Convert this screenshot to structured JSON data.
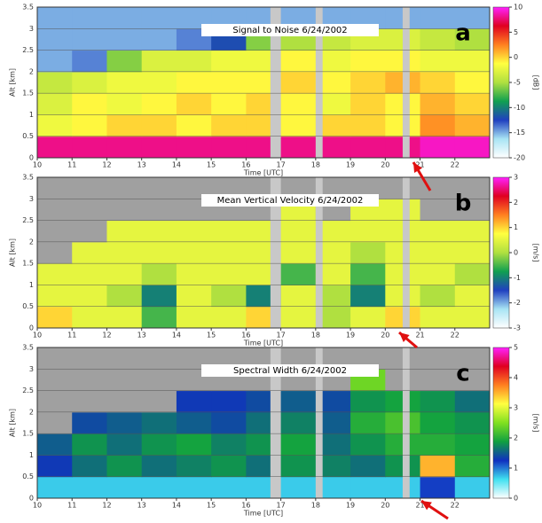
{
  "chart_data": [
    {
      "type": "heatmap",
      "title": "Signal to Noise 6/24/2002",
      "panel_label": "a",
      "y_label": "Alt [km]",
      "x_label": "Time [UTC]",
      "colorbar_label": "[dB]",
      "x_bins": [
        10,
        11,
        12,
        13,
        14,
        15,
        16,
        17,
        18,
        19,
        20,
        21,
        22,
        23
      ],
      "y_bins": [
        0,
        0.5,
        1,
        1.5,
        2,
        2.5,
        3,
        3.5
      ],
      "xlim": [
        10,
        23
      ],
      "ylim": [
        0,
        3.5
      ],
      "xticks": [
        10,
        11,
        12,
        13,
        14,
        15,
        16,
        17,
        18,
        19,
        20,
        21,
        22
      ],
      "yticks": [
        0,
        0.5,
        1,
        1.5,
        2,
        2.5,
        3,
        3.5
      ],
      "zlim": [
        -20,
        10
      ],
      "zticks": [
        -20,
        -15,
        -10,
        -5,
        0,
        5,
        10
      ],
      "colormap": [
        "#ffffff",
        "#a8e4f4",
        "#2040c0",
        "#10a050",
        "#b0e040",
        "#ffff40",
        "#ff8020",
        "#e00020",
        "#ff20ff"
      ],
      "null_color": "#a0a0a0",
      "background": "#b8ecf8",
      "gaps": [
        [
          16.7,
          17.0
        ],
        [
          18.0,
          18.2
        ],
        [
          20.5,
          20.7
        ]
      ],
      "z": [
        [
          8,
          8,
          8,
          8,
          8,
          8,
          8,
          8,
          8,
          8,
          8,
          9,
          9
        ],
        [
          -2,
          -1,
          0,
          0,
          -1,
          0,
          0,
          -1,
          0,
          0,
          -1,
          2,
          1
        ],
        [
          -3,
          -1,
          -2,
          -1,
          0,
          -1,
          0,
          -1,
          -2,
          0,
          -1,
          1,
          0
        ],
        [
          -4,
          -3,
          -2,
          -2,
          -1,
          -1,
          -1,
          0,
          -1,
          0,
          1,
          0,
          -1
        ],
        [
          -15,
          -14,
          -6,
          -3,
          -3,
          -2,
          -2,
          -1,
          -2,
          -1,
          -1,
          -2,
          -2
        ],
        [
          -15,
          -15,
          -15,
          -15,
          -14,
          -12,
          -6,
          -5,
          -4,
          -3,
          -3,
          -4,
          -5
        ],
        [
          -15,
          -15,
          -15,
          -15,
          -15,
          -15,
          -15,
          -15,
          -15,
          -15,
          -15,
          -15,
          -15
        ]
      ]
    },
    {
      "type": "heatmap",
      "title": "Mean Vertical Velocity 6/24/2002",
      "panel_label": "b",
      "y_label": "Alt [km]",
      "x_label": "Time [UTC]",
      "colorbar_label": "[m/s]",
      "x_bins": [
        10,
        11,
        12,
        13,
        14,
        15,
        16,
        17,
        18,
        19,
        20,
        21,
        22,
        23
      ],
      "y_bins": [
        0,
        0.5,
        1,
        1.5,
        2,
        2.5,
        3,
        3.5
      ],
      "xlim": [
        10,
        23
      ],
      "ylim": [
        0,
        3.5
      ],
      "xticks": [
        10,
        11,
        12,
        13,
        14,
        15,
        16,
        17,
        18,
        19,
        20,
        21,
        22
      ],
      "yticks": [
        0,
        0.5,
        1,
        1.5,
        2,
        2.5,
        3,
        3.5
      ],
      "zlim": [
        -3,
        3
      ],
      "zticks": [
        -3,
        -2,
        -1,
        0,
        1,
        2,
        3
      ],
      "colormap": [
        "#ffffff",
        "#a8e4f4",
        "#2040c0",
        "#10a050",
        "#b0e040",
        "#ffff40",
        "#ff8020",
        "#e00020",
        "#ff20ff"
      ],
      "null_color": "#a0a0a0",
      "background": "#a0a0a0",
      "gaps": [
        [
          16.7,
          17.0
        ],
        [
          18.0,
          18.2
        ],
        [
          20.5,
          20.7
        ]
      ],
      "z": [
        [
          1,
          0.5,
          0.5,
          -0.5,
          0.5,
          0.5,
          1,
          0.5,
          0,
          0.5,
          1,
          0.5,
          0.5
        ],
        [
          0.5,
          0.5,
          0,
          -1,
          0.5,
          0,
          -1,
          0.5,
          0,
          -1,
          0.5,
          0,
          0.5
        ],
        [
          0.5,
          0.5,
          0.5,
          0,
          0.5,
          0.5,
          0.5,
          -0.5,
          0.5,
          -0.5,
          0.5,
          0.5,
          0
        ],
        [
          null,
          0.5,
          0.5,
          0.5,
          0.5,
          0.5,
          0.5,
          0.5,
          0.5,
          0,
          0.5,
          0.5,
          0.5
        ],
        [
          null,
          null,
          0.5,
          0.5,
          0.5,
          0.5,
          0.5,
          0.5,
          0.5,
          0.5,
          0.5,
          0.5,
          0.5
        ],
        [
          null,
          null,
          null,
          null,
          null,
          null,
          null,
          0.5,
          null,
          0.5,
          0.5,
          null,
          null
        ],
        [
          null,
          null,
          null,
          null,
          null,
          null,
          null,
          null,
          null,
          null,
          null,
          null,
          null
        ]
      ]
    },
    {
      "type": "heatmap",
      "title": "Spectral Width 6/24/2002",
      "panel_label": "c",
      "y_label": "Alt [km]",
      "x_label": "Time [UTC]",
      "colorbar_label": "[m/s]",
      "x_bins": [
        10,
        11,
        12,
        13,
        14,
        15,
        16,
        17,
        18,
        19,
        20,
        21,
        22,
        23
      ],
      "y_bins": [
        0,
        0.5,
        1,
        1.5,
        2,
        2.5,
        3,
        3.5
      ],
      "xlim": [
        10,
        23
      ],
      "ylim": [
        0,
        3.5
      ],
      "xticks": [
        10,
        11,
        12,
        13,
        14,
        15,
        16,
        17,
        18,
        19,
        20,
        21,
        22
      ],
      "yticks": [
        0,
        0.5,
        1,
        1.5,
        2,
        2.5,
        3,
        3.5
      ],
      "zlim": [
        0,
        5
      ],
      "zticks": [
        0,
        1,
        2,
        3,
        4,
        5
      ],
      "colormap": [
        "#ffffff",
        "#40e0f0",
        "#1030c0",
        "#10a040",
        "#80e020",
        "#ffff40",
        "#ff8020",
        "#e00020",
        "#ff20ff"
      ],
      "null_color": "#a0a0a0",
      "background": "#a0a0a0",
      "gaps": [
        [
          16.7,
          17.0
        ],
        [
          18.0,
          18.2
        ],
        [
          20.5,
          20.7
        ]
      ],
      "z": [
        [
          0.7,
          0.7,
          0.7,
          0.7,
          0.7,
          0.7,
          0.7,
          0.7,
          0.7,
          0.7,
          0.7,
          1.2,
          0.7
        ],
        [
          1.3,
          1.6,
          1.8,
          1.6,
          1.7,
          1.8,
          1.6,
          1.8,
          1.7,
          1.6,
          1.8,
          3.5,
          2
        ],
        [
          1.5,
          1.8,
          1.6,
          1.8,
          1.9,
          1.7,
          1.8,
          1.9,
          1.6,
          1.8,
          2,
          2,
          1.9
        ],
        [
          null,
          1.4,
          1.5,
          1.6,
          1.5,
          1.4,
          1.6,
          1.7,
          1.5,
          2,
          2.2,
          1.9,
          1.8
        ],
        [
          null,
          null,
          null,
          null,
          1.3,
          1.3,
          1.4,
          1.5,
          1.4,
          1.8,
          1.9,
          1.8,
          1.6
        ],
        [
          null,
          null,
          null,
          null,
          null,
          null,
          null,
          null,
          null,
          2.4,
          null,
          null,
          null
        ],
        [
          null,
          null,
          null,
          null,
          null,
          null,
          null,
          null,
          null,
          null,
          null,
          null,
          null
        ]
      ]
    }
  ]
}
